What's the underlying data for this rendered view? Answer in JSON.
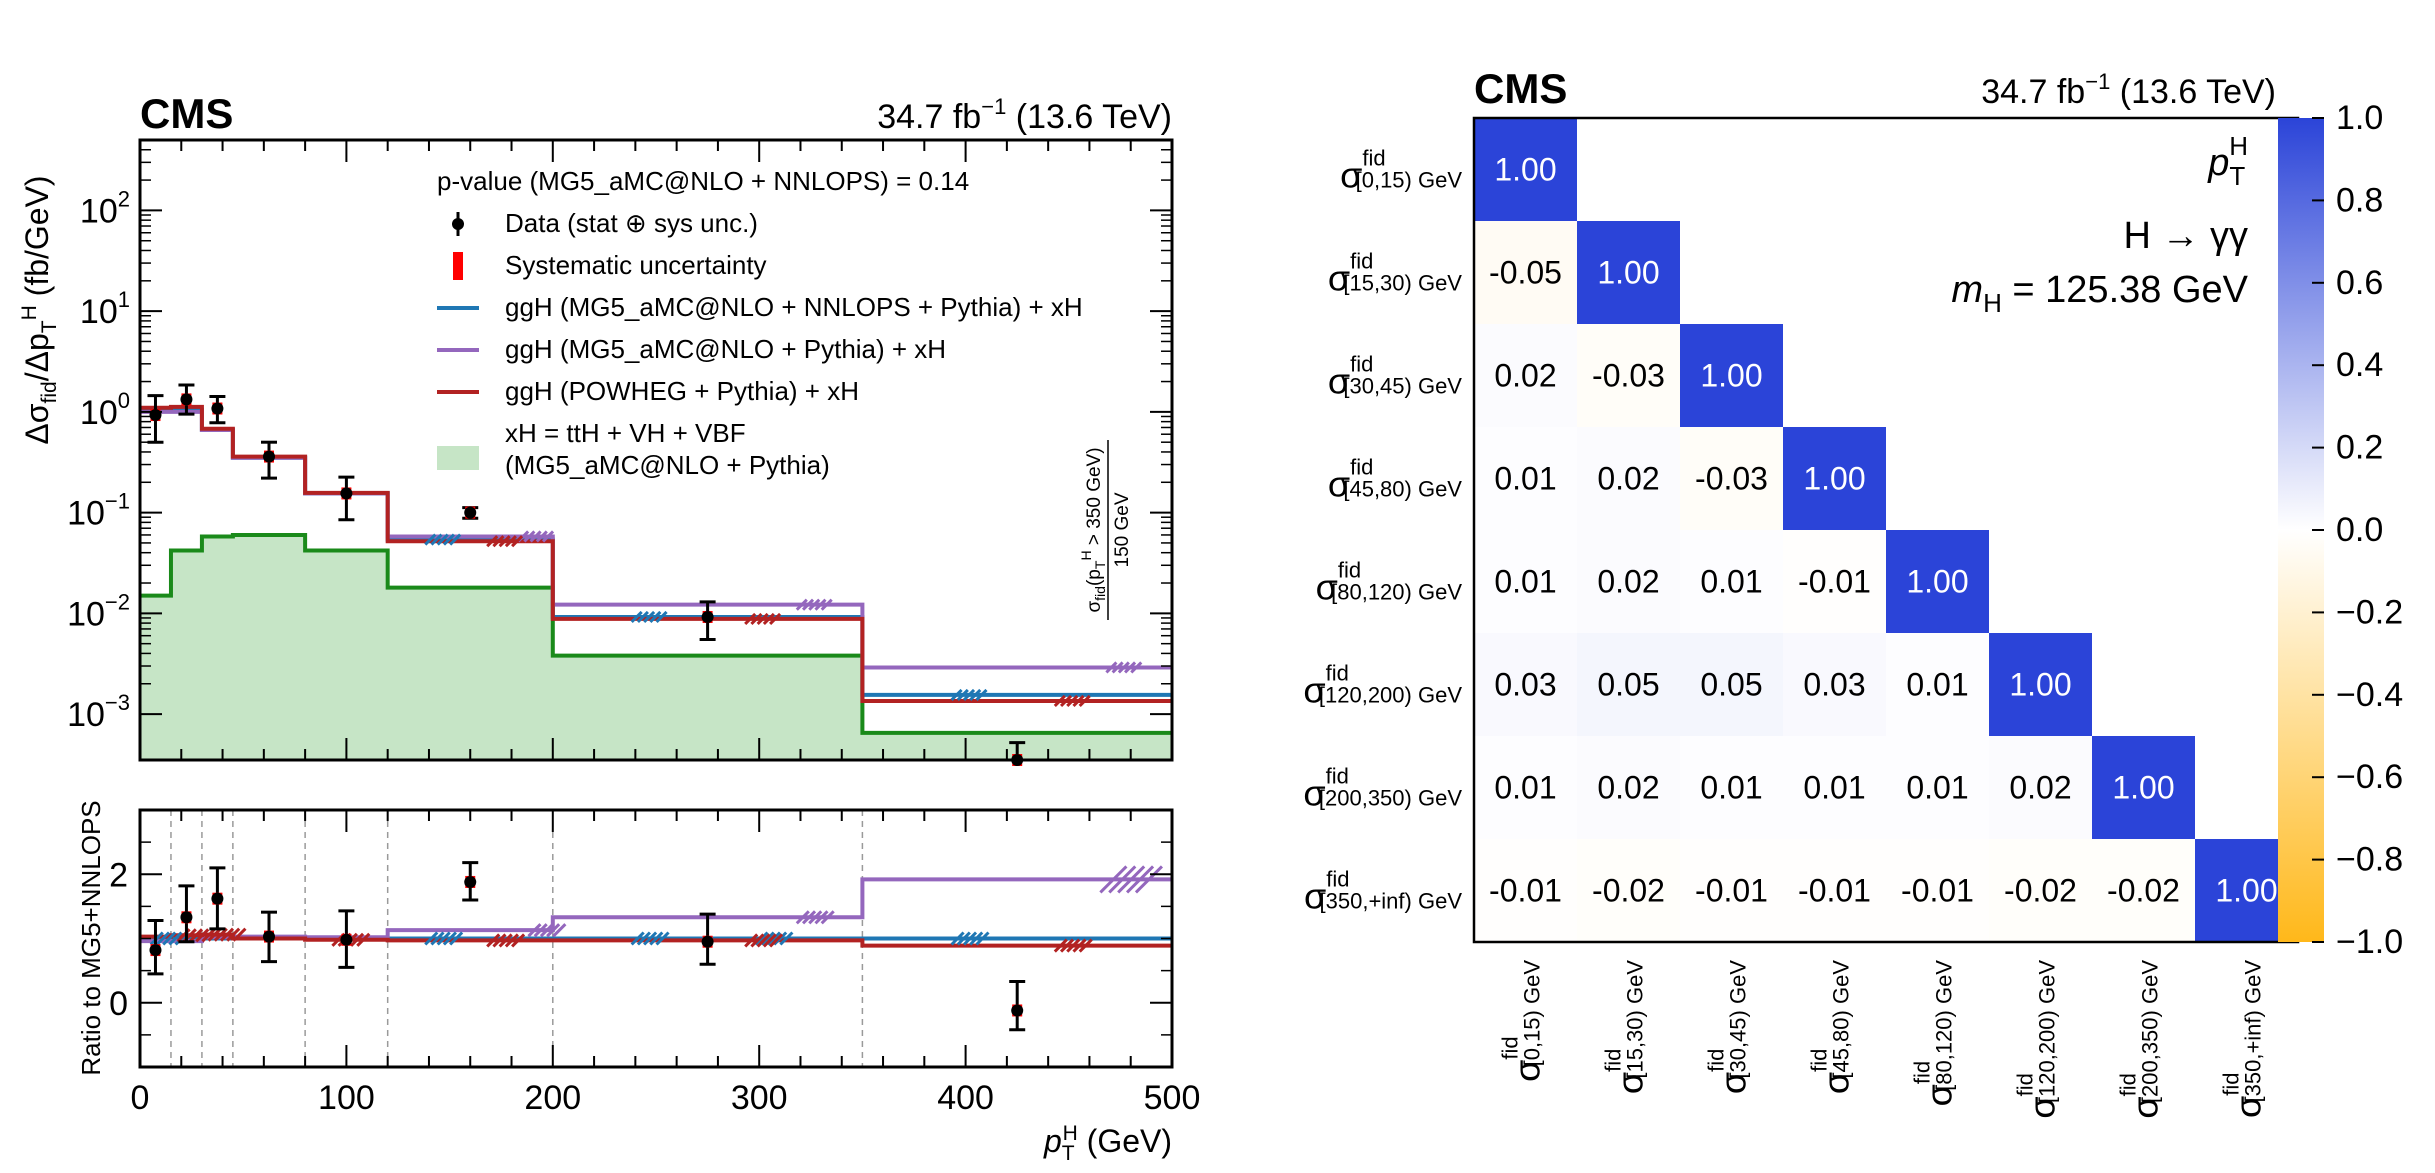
{
  "chart_data": [
    {
      "type": "line",
      "panel": "left-main",
      "experiment": "CMS",
      "luminosity": "34.7 fb",
      "luminosity_sup": "−1",
      "energy": "(13.6 TeV)",
      "ylabel": {
        "main": "Δσ",
        "sub1": "fid",
        "mid": "/Δp",
        "sub2": "T",
        "sup2": "H",
        "unit": " (fb/GeV)"
      },
      "y_scale": "log",
      "ylim": [
        0.00035,
        500
      ],
      "xlim": [
        0,
        500
      ],
      "y_ticks": [
        {
          "value": 100,
          "base": "10",
          "exp": "2"
        },
        {
          "value": 10,
          "base": "10",
          "exp": "1"
        },
        {
          "value": 1,
          "base": "10",
          "exp": "0"
        },
        {
          "value": 0.1,
          "base": "10",
          "exp": "−1"
        },
        {
          "value": 0.01,
          "base": "10",
          "exp": "−2"
        },
        {
          "value": 0.001,
          "base": "10",
          "exp": "−3"
        }
      ],
      "bin_edges": [
        0,
        15,
        30,
        45,
        80,
        120,
        200,
        350,
        500
      ],
      "legend": {
        "header": "p-value (MG5_aMC@NLO + NNLOPS) = 0.14",
        "entries": [
          {
            "label": "Data (stat ⊕ sys unc.)",
            "color": "#000000",
            "marker": "point"
          },
          {
            "label": "Systematic uncertainty",
            "color": "#ff0000",
            "marker": "box"
          },
          {
            "label": "ggH (MG5_aMC@NLO + NNLOPS + Pythia) + xH",
            "color": "#1f77b4",
            "marker": "line"
          },
          {
            "label": "ggH (MG5_aMC@NLO + Pythia) + xH",
            "color": "#9467bd",
            "marker": "line"
          },
          {
            "label": "ggH (POWHEG + Pythia) + xH",
            "color": "#b22222",
            "marker": "line"
          },
          {
            "label": "xH = ttH + VH + VBF",
            "label2": "(MG5_aMC@NLO + Pythia)",
            "color": "#c6e5c6",
            "marker": "fill"
          }
        ]
      },
      "overflow_label": {
        "num": "σ",
        "num_sub": "fid",
        "num_paren": "(p",
        "num_sub2": "T",
        "num_sup2": "H",
        "num_rest": " > 350 GeV)",
        "den": "150 GeV"
      },
      "series": [
        {
          "name": "ggH (MG5_aMC@NLO + NNLOPS + Pythia) + xH",
          "color": "#1f77b4",
          "values": [
            1.05,
            1.05,
            0.66,
            0.35,
            0.155,
            0.054,
            0.0092,
            0.00155
          ]
        },
        {
          "name": "ggH (MG5_aMC@NLO + Pythia) + xH",
          "color": "#9467bd",
          "values": [
            1.0,
            1.0,
            0.66,
            0.35,
            0.155,
            0.058,
            0.0122,
            0.0029
          ]
        },
        {
          "name": "ggH (POWHEG + Pythia) + xH",
          "color": "#b22222",
          "values": [
            1.1,
            1.12,
            0.68,
            0.36,
            0.157,
            0.052,
            0.0088,
            0.00135
          ]
        },
        {
          "name": "xH = ttH + VH + VBF",
          "color": "#1a8a1a",
          "fill": "#c6e5c6",
          "values": [
            0.015,
            0.042,
            0.058,
            0.06,
            0.042,
            0.018,
            0.0038,
            0.00065
          ]
        }
      ],
      "data_points": [
        {
          "x": 7.5,
          "y": 0.93,
          "lo": 0.5,
          "hi": 1.45
        },
        {
          "x": 22.5,
          "y": 1.33,
          "lo": 0.95,
          "hi": 1.85
        },
        {
          "x": 37.5,
          "y": 1.08,
          "lo": 0.78,
          "hi": 1.42
        },
        {
          "x": 62.5,
          "y": 0.36,
          "lo": 0.22,
          "hi": 0.5
        },
        {
          "x": 100,
          "y": 0.155,
          "lo": 0.085,
          "hi": 0.225
        },
        {
          "x": 160,
          "y": 0.1,
          "lo": 0.088,
          "hi": 0.112
        },
        {
          "x": 275,
          "y": 0.0092,
          "lo": 0.0055,
          "hi": 0.013
        },
        {
          "x": 425,
          "y": 0.00013,
          "lo": 1e-05,
          "hi": 0.00052
        }
      ]
    },
    {
      "type": "line",
      "panel": "left-ratio",
      "xlabel": {
        "main": "p",
        "sub": "T",
        "sup": "H",
        "unit": " (GeV)"
      },
      "ylabel": "Ratio to MG5+NNLOPS",
      "xlim": [
        0,
        500
      ],
      "ylim": [
        -1,
        3
      ],
      "x_ticks": [
        0,
        100,
        200,
        300,
        400,
        500
      ],
      "y_ticks": [
        0,
        2
      ],
      "series": [
        {
          "name": "ggH (MG5_aMC@NLO + NNLOPS + Pythia) + xH",
          "color": "#1f77b4",
          "values": [
            1.0,
            1.0,
            1.0,
            1.0,
            1.0,
            1.0,
            1.0,
            1.0
          ]
        },
        {
          "name": "ggH (MG5_aMC@NLO + Pythia) + xH",
          "color": "#9467bd",
          "values": [
            0.96,
            0.96,
            1.02,
            1.03,
            1.02,
            1.13,
            1.33,
            1.92
          ]
        },
        {
          "name": "ggH (POWHEG + Pythia) + xH",
          "color": "#b22222",
          "values": [
            1.03,
            1.05,
            1.06,
            1.0,
            0.98,
            0.97,
            0.97,
            0.89
          ]
        }
      ],
      "data_points": [
        {
          "x": 7.5,
          "y": 0.82,
          "lo": 0.45,
          "hi": 1.28
        },
        {
          "x": 22.5,
          "y": 1.33,
          "lo": 0.95,
          "hi": 1.82
        },
        {
          "x": 37.5,
          "y": 1.62,
          "lo": 1.15,
          "hi": 2.1
        },
        {
          "x": 62.5,
          "y": 1.03,
          "lo": 0.64,
          "hi": 1.41
        },
        {
          "x": 100,
          "y": 0.98,
          "lo": 0.55,
          "hi": 1.43
        },
        {
          "x": 160,
          "y": 1.88,
          "lo": 1.6,
          "hi": 2.18
        },
        {
          "x": 275,
          "y": 0.95,
          "lo": 0.6,
          "hi": 1.38
        },
        {
          "x": 425,
          "y": -0.12,
          "lo": -0.42,
          "hi": 0.33
        }
      ]
    },
    {
      "type": "heatmap",
      "panel": "right",
      "experiment": "CMS",
      "luminosity": "34.7 fb",
      "luminosity_sup": "−1",
      "energy": "(13.6 TeV)",
      "annotations": [
        {
          "main": "p",
          "sub": "T",
          "sup": "H"
        },
        {
          "text": "H → γγ"
        },
        {
          "main": "m",
          "sub": "H",
          "rest": " = 125.38 GeV"
        }
      ],
      "row_labels": [
        {
          "main": "σ",
          "sup": "fid",
          "sub": "[0,15) GeV"
        },
        {
          "main": "σ",
          "sup": "fid",
          "sub": "[15,30) GeV"
        },
        {
          "main": "σ",
          "sup": "fid",
          "sub": "[30,45) GeV"
        },
        {
          "main": "σ",
          "sup": "fid",
          "sub": "[45,80) GeV"
        },
        {
          "main": "σ",
          "sup": "fid",
          "sub": "[80,120) GeV"
        },
        {
          "main": "σ",
          "sup": "fid",
          "sub": "[120,200) GeV"
        },
        {
          "main": "σ",
          "sup": "fid",
          "sub": "[200,350) GeV"
        },
        {
          "main": "σ",
          "sup": "fid",
          "sub": "[350,+inf) GeV"
        }
      ],
      "col_labels": [
        {
          "main": "σ",
          "sup": "fid",
          "sub": "[0,15) GeV"
        },
        {
          "main": "σ",
          "sup": "fid",
          "sub": "[15,30) GeV"
        },
        {
          "main": "σ",
          "sup": "fid",
          "sub": "[30,45) GeV"
        },
        {
          "main": "σ",
          "sup": "fid",
          "sub": "[45,80) GeV"
        },
        {
          "main": "σ",
          "sup": "fid",
          "sub": "[80,120) GeV"
        },
        {
          "main": "σ",
          "sup": "fid",
          "sub": "[120,200) GeV"
        },
        {
          "main": "σ",
          "sup": "fid",
          "sub": "[200,350) GeV"
        },
        {
          "main": "σ",
          "sup": "fid",
          "sub": "[350,+inf) GeV"
        }
      ],
      "matrix": [
        [
          "1.00"
        ],
        [
          "-0.05",
          "1.00"
        ],
        [
          "0.02",
          "-0.03",
          "1.00"
        ],
        [
          "0.01",
          "0.02",
          "-0.03",
          "1.00"
        ],
        [
          "0.01",
          "0.02",
          "0.01",
          "-0.01",
          "1.00"
        ],
        [
          "0.03",
          "0.05",
          "0.05",
          "0.03",
          "0.01",
          "1.00"
        ],
        [
          "0.01",
          "0.02",
          "0.01",
          "0.01",
          "0.01",
          "0.02",
          "1.00"
        ],
        [
          "-0.01",
          "-0.02",
          "-0.01",
          "-0.01",
          "-0.01",
          "-0.02",
          "-0.02",
          "1.00"
        ]
      ],
      "colorbar": {
        "range": [
          -1,
          1
        ],
        "ticks": [
          "1.0",
          "0.8",
          "0.6",
          "0.4",
          "0.2",
          "0.0",
          "−0.2",
          "−0.4",
          "−0.6",
          "−0.8",
          "−1.0"
        ],
        "color_max": "#2b44d8",
        "color_mid": "#ffffff",
        "color_min": "#ffb81a"
      }
    }
  ]
}
